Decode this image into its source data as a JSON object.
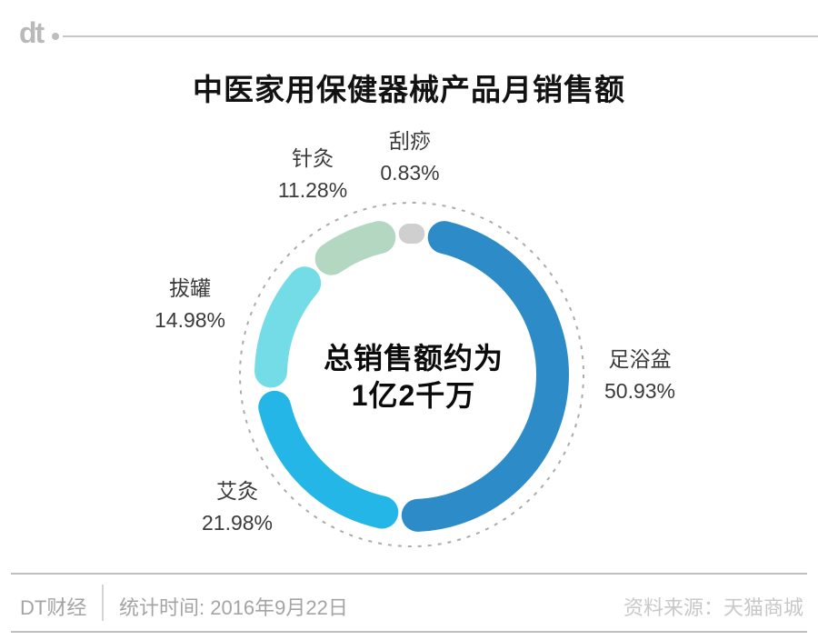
{
  "logo": {
    "text": "dt"
  },
  "title": "中医家用保健器械产品月销售额",
  "chart_data": {
    "type": "pie",
    "subtype": "donut",
    "title": "中医家用保健器械产品月销售额",
    "unit": "percent",
    "direction": "clockwise",
    "start": "top-centered-on-first-segment",
    "outer_guide_circle": {
      "style": "dashed",
      "color": "#ababab"
    },
    "center_text": {
      "line1": "总销售额约为",
      "line2": "1亿2千万"
    },
    "segments": [
      {
        "key": "guasha",
        "label": "刮痧",
        "value": 0.83,
        "display": "0.83%",
        "color": "#cfcfcf"
      },
      {
        "key": "zuyupen",
        "label": "足浴盆",
        "value": 50.93,
        "display": "50.93%",
        "color": "#2d8cc7"
      },
      {
        "key": "aijiu",
        "label": "艾灸",
        "value": 21.98,
        "display": "21.98%",
        "color": "#25b6e8"
      },
      {
        "key": "baguan",
        "label": "拔罐",
        "value": 14.98,
        "display": "14.98%",
        "color": "#74dce6"
      },
      {
        "key": "zhenjiu",
        "label": "针灸",
        "value": 11.28,
        "display": "11.28%",
        "color": "#b3d7c1"
      }
    ]
  },
  "footer": {
    "brand": "DT财经",
    "stat_time": "统计时间: 2016年9月22日",
    "source": "资料来源：天猫商城"
  }
}
